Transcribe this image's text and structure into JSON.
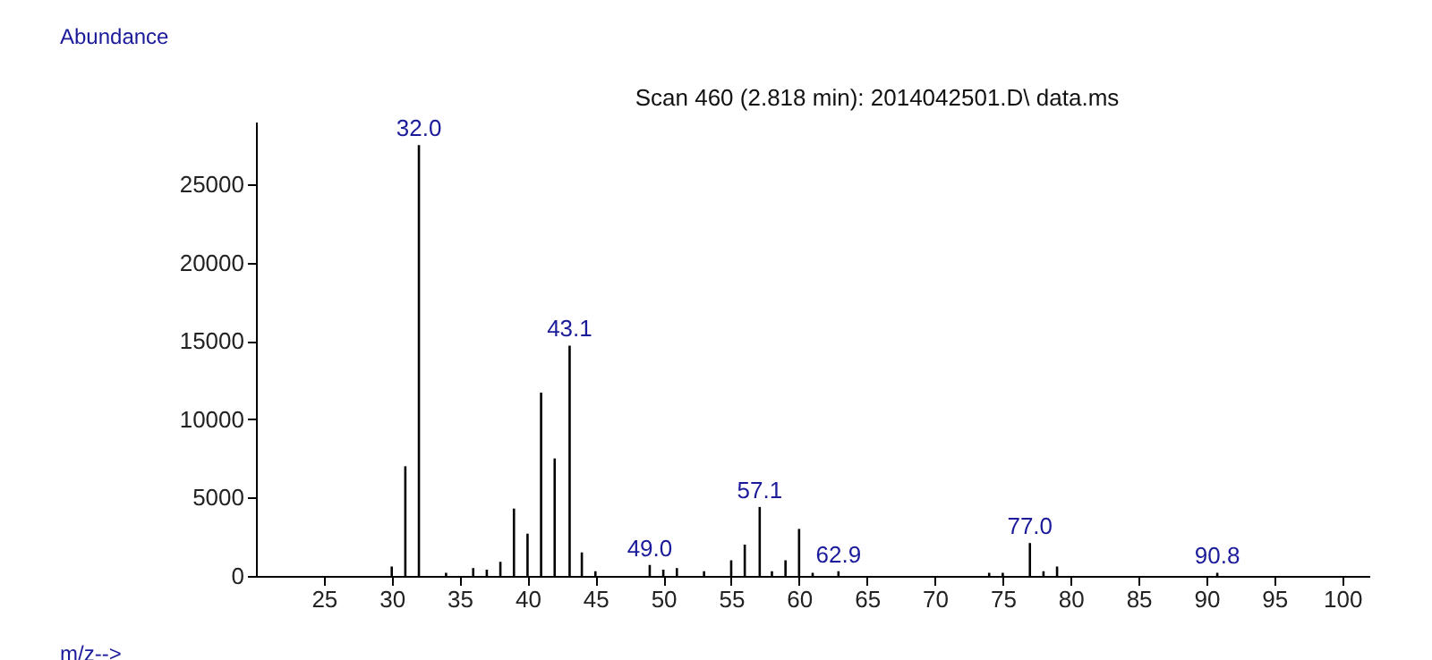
{
  "chart_data": {
    "type": "bar",
    "title": "Scan 460 (2.818 min): 2014042501.D\\ data.ms",
    "xlabel": "m/z-->",
    "ylabel": "Abundance",
    "x": [
      30,
      31,
      32.0,
      34,
      36,
      37,
      38,
      39,
      40,
      41,
      42,
      43.1,
      44,
      45,
      49.0,
      50,
      51,
      53,
      55,
      56,
      57.1,
      58,
      59,
      60,
      61,
      62.9,
      74,
      75,
      77.0,
      78,
      79,
      90.8
    ],
    "values": [
      600,
      7000,
      27500,
      200,
      500,
      400,
      900,
      4300,
      2700,
      11700,
      7500,
      14700,
      1500,
      300,
      700,
      400,
      500,
      300,
      1000,
      2000,
      4400,
      300,
      1000,
      3000,
      200,
      300,
      200,
      200,
      2100,
      300,
      600,
      200
    ],
    "color": "#000000",
    "xlim": [
      20,
      102
    ],
    "xticks": [
      25,
      30,
      35,
      40,
      45,
      50,
      55,
      60,
      65,
      70,
      75,
      80,
      85,
      90,
      95,
      100
    ],
    "ylim": [
      0,
      29000
    ],
    "yticks": [
      0,
      5000,
      10000,
      15000,
      20000,
      25000
    ],
    "grid": false,
    "annotations": [
      {
        "text": "32.0",
        "x": 32.0,
        "y": 27500
      },
      {
        "text": "43.1",
        "x": 43.1,
        "y": 14700
      },
      {
        "text": "49.0",
        "x": 49.0,
        "y": 700
      },
      {
        "text": "57.1",
        "x": 57.1,
        "y": 4400
      },
      {
        "text": "62.9",
        "x": 62.9,
        "y": 300
      },
      {
        "text": "77.0",
        "x": 77.0,
        "y": 2100
      },
      {
        "text": "90.8",
        "x": 90.8,
        "y": 200
      }
    ]
  }
}
